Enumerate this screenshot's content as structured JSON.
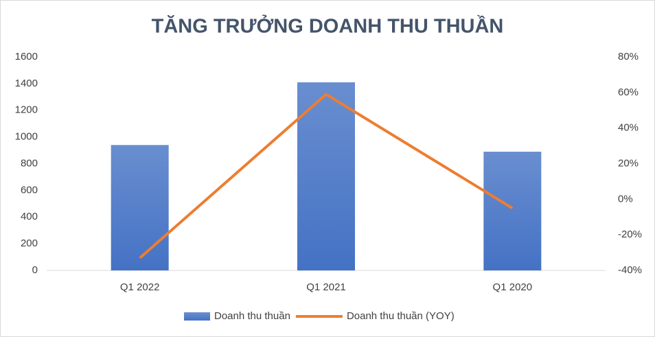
{
  "chart_data": {
    "type": "combo",
    "title": "TĂNG TRƯỞNG DOANH THU THUẦN",
    "categories": [
      "Q1 2022",
      "Q1 2021",
      "Q1 2020"
    ],
    "series": [
      {
        "name": "Doanh thu thuần",
        "type": "bar",
        "color": "#4472c4",
        "values": [
          940,
          1410,
          890
        ]
      },
      {
        "name": "Doanh thu thuần (YOY)",
        "type": "line",
        "axis": "y2",
        "color": "#ed7d31",
        "values": [
          -33,
          59,
          -5
        ]
      }
    ],
    "ylim": [
      0,
      1600
    ],
    "yticks": [
      0,
      200,
      400,
      600,
      800,
      1000,
      1200,
      1400,
      1600
    ],
    "y2lim": [
      -40,
      80
    ],
    "y2ticks": [
      {
        "value": -40,
        "label": "-40%"
      },
      {
        "value": -20,
        "label": "-20%"
      },
      {
        "value": 0,
        "label": "0%"
      },
      {
        "value": 20,
        "label": "20%"
      },
      {
        "value": 40,
        "label": "40%"
      },
      {
        "value": 60,
        "label": "60%"
      },
      {
        "value": 80,
        "label": "80%"
      }
    ],
    "grid": false,
    "legend": "bottom"
  }
}
